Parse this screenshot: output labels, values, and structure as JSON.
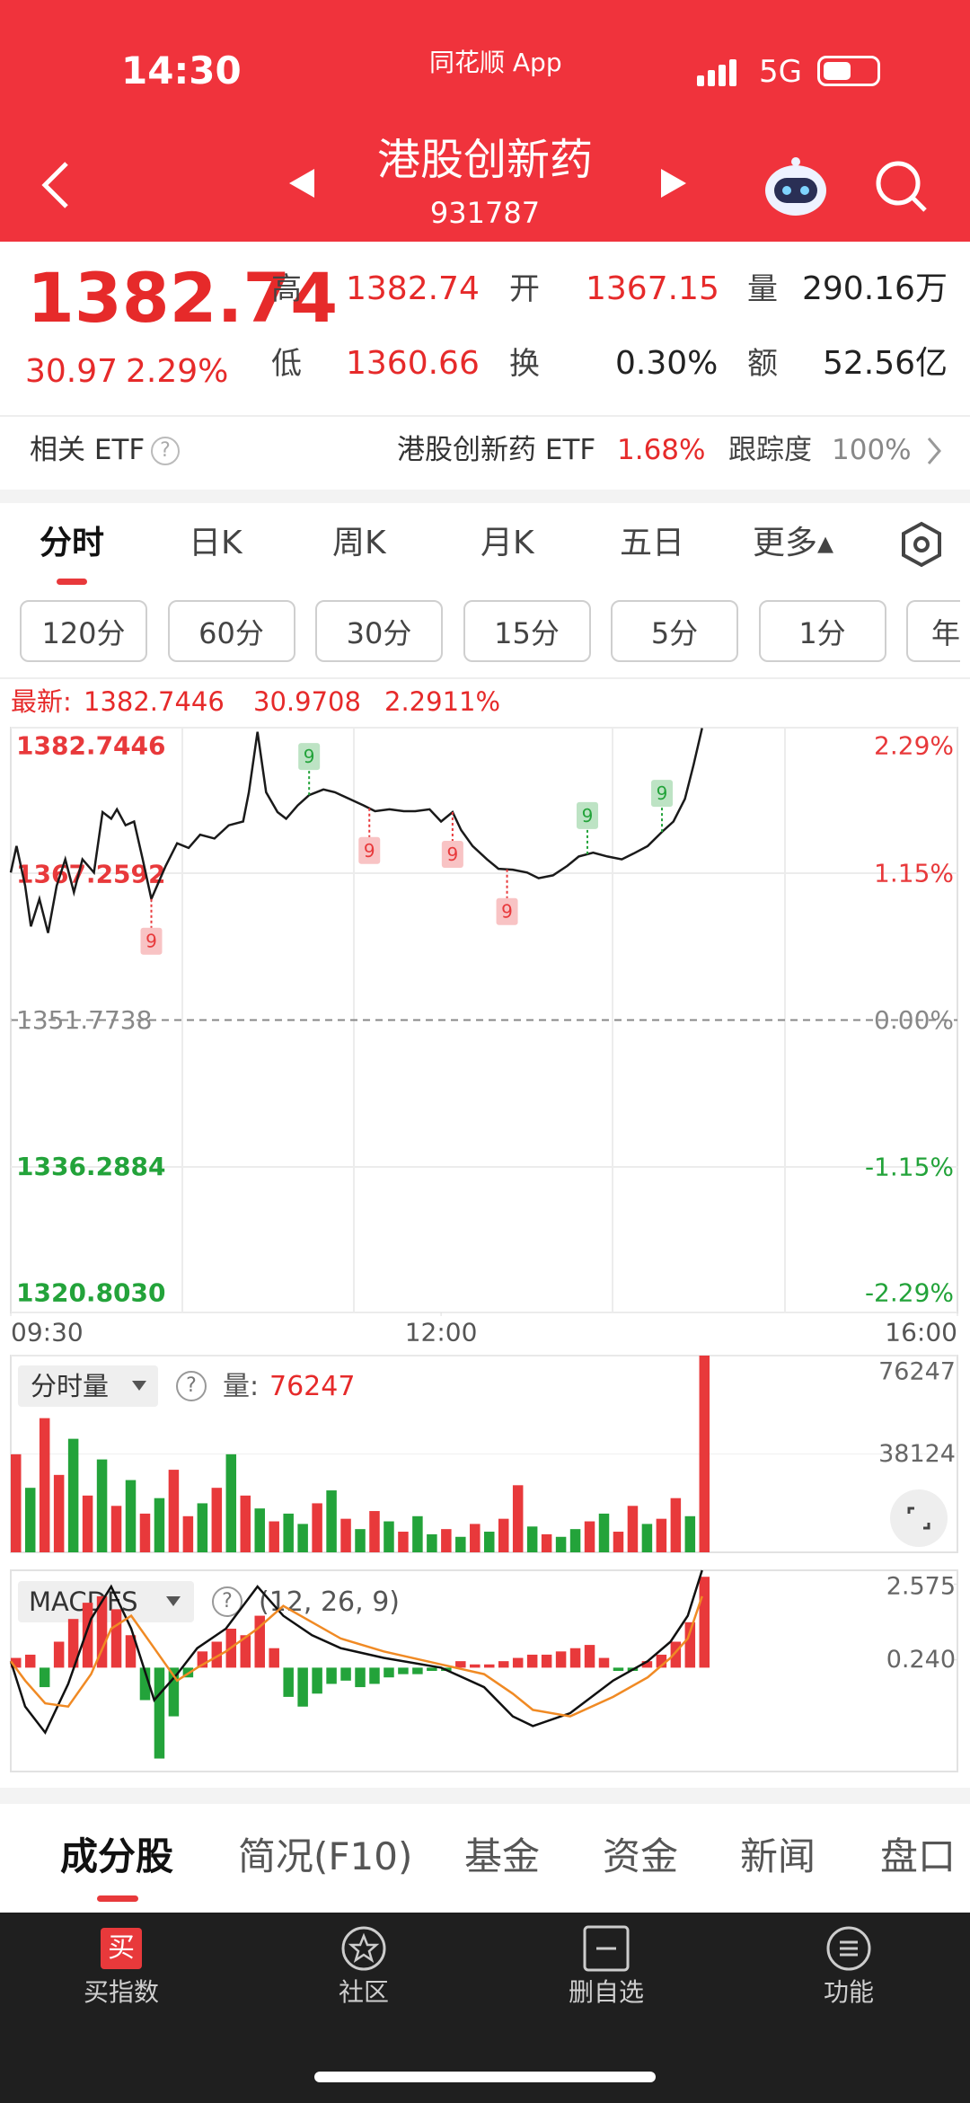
{
  "status": {
    "time": "14:30",
    "app": "同花顺 App",
    "network": "5G"
  },
  "header": {
    "title": "港股创新药",
    "code": "931787"
  },
  "quote": {
    "price": "1382.74",
    "change": "30.97",
    "change_pct": "2.29%",
    "high_label": "高",
    "high": "1382.74",
    "open_label": "开",
    "open": "1367.15",
    "volume_label": "量",
    "volume": "290.16万",
    "low_label": "低",
    "low": "1360.66",
    "turnover_label": "换",
    "turnover": "0.30%",
    "amount_label": "额",
    "amount": "52.56亿"
  },
  "etf": {
    "label": "相关 ETF",
    "help": "?",
    "name": "港股创新药 ETF",
    "pct": "1.68%",
    "track_label": "跟踪度",
    "track": "100%"
  },
  "tabs": [
    "分时",
    "日K",
    "周K",
    "月K",
    "五日",
    "更多▴"
  ],
  "periods": [
    "120分",
    "60分",
    "30分",
    "15分",
    "5分",
    "1分",
    "年"
  ],
  "latest": {
    "label": "最新:",
    "price": "1382.7446",
    "change": "30.9708",
    "pct": "2.2911%"
  },
  "chart_data": [
    {
      "type": "line",
      "x": [
        0,
        2,
        5,
        7,
        10,
        13,
        16,
        19,
        22,
        25,
        29,
        32,
        35,
        37,
        40,
        43,
        46,
        49,
        51,
        54,
        58,
        62,
        66,
        71,
        76,
        81,
        83,
        86,
        89,
        93,
        96,
        100,
        104,
        109,
        113,
        118,
        123,
        127,
        132,
        137,
        141,
        146,
        150,
        154,
        157,
        161,
        166,
        170,
        175,
        180,
        184,
        189,
        194,
        198,
        203,
        208,
        213,
        217,
        222,
        227,
        231,
        235,
        238,
        241
      ],
      "xlim": [
        0,
        330
      ],
      "xticks": [
        {
          "value": 0,
          "label": "09:30"
        },
        {
          "value": 150,
          "label": "12:00"
        },
        {
          "value": 330,
          "label": "16:00"
        }
      ],
      "ylim": [
        1320.803,
        1382.7446
      ],
      "yticks": [
        1382.7446,
        1367.2592,
        1351.7738,
        1336.2884,
        {
          "value": 1320.803,
          "label": "1320.8030"
        }
      ],
      "y2lim": [
        -2.29,
        2.29
      ],
      "y2ticks": [
        {
          "value": 2.29,
          "label": "2.29%"
        },
        {
          "value": 1.15,
          "label": "1.15%"
        },
        {
          "value": 0,
          "label": "0.00%"
        },
        {
          "value": -1.15,
          "label": "-1.15%"
        },
        {
          "value": -2.29,
          "label": "-2.29%"
        }
      ],
      "up_color": "#e8393b",
      "down_color": "#23a33a",
      "flat_color": "#888888",
      "series": [
        {
          "color": "#1a1a1a",
          "values": [
            1367.4,
            1370.2,
            1366.0,
            1361.7,
            1364.6,
            1361.0,
            1366.0,
            1368.8,
            1365.3,
            1368.8,
            1367.4,
            1373.8,
            1373.1,
            1374.1,
            1372.4,
            1372.8,
            1368.8,
            1364.6,
            1366.0,
            1368.1,
            1370.5,
            1370.0,
            1371.4,
            1371.0,
            1372.4,
            1372.8,
            1375.9,
            1382.3,
            1375.9,
            1373.8,
            1373.1,
            1374.5,
            1375.6,
            1376.2,
            1375.9,
            1375.2,
            1374.5,
            1373.9,
            1374.1,
            1373.9,
            1373.9,
            1374.1,
            1372.8,
            1373.8,
            1371.9,
            1370.2,
            1368.8,
            1367.8,
            1367.7,
            1367.4,
            1366.8,
            1367.1,
            1368.1,
            1369.1,
            1369.5,
            1369.1,
            1368.8,
            1369.4,
            1370.2,
            1371.7,
            1372.8,
            1375.2,
            1378.8,
            1382.7
          ]
        }
      ],
      "annotations": [
        {
          "text": "9",
          "x": 49,
          "color": "#e8393b",
          "position": "below"
        },
        {
          "text": "9",
          "x": 104,
          "color": "#23a33a",
          "position": "above"
        },
        {
          "text": "9",
          "x": 125,
          "color": "#e8393b",
          "position": "below"
        },
        {
          "text": "9",
          "x": 154,
          "color": "#e8393b",
          "position": "below"
        },
        {
          "text": "9",
          "x": 173,
          "color": "#e8393b",
          "position": "below"
        },
        {
          "text": "9",
          "x": 201,
          "color": "#23a33a",
          "position": "above"
        },
        {
          "text": "9",
          "x": 227,
          "color": "#23a33a",
          "position": "above"
        }
      ]
    },
    {
      "type": "bar",
      "label": "分时量",
      "help": "?",
      "latest_label": "量:",
      "latest": 76247,
      "x": [
        0,
        5,
        10,
        15,
        20,
        25,
        30,
        35,
        40,
        45,
        50,
        55,
        60,
        65,
        70,
        75,
        80,
        85,
        90,
        95,
        100,
        105,
        110,
        115,
        120,
        125,
        130,
        135,
        140,
        145,
        150,
        155,
        160,
        165,
        170,
        175,
        180,
        185,
        190,
        195,
        200,
        205,
        210,
        215,
        220,
        225,
        230,
        235,
        240
      ],
      "xlim": [
        0,
        330
      ],
      "ylim": [
        0,
        76247
      ],
      "yticks": [
        38124,
        76247
      ],
      "series": [
        {
          "values": [
            38000,
            25000,
            52000,
            30000,
            44000,
            22000,
            36000,
            18000,
            28000,
            15000,
            21000,
            32000,
            14000,
            19000,
            25000,
            38000,
            22000,
            17000,
            12000,
            15000,
            11000,
            19000,
            24000,
            13000,
            9000,
            16000,
            12000,
            8000,
            14000,
            7000,
            9000,
            6000,
            11000,
            8000,
            13000,
            26000,
            10000,
            7000,
            6000,
            9000,
            12000,
            15000,
            8000,
            18000,
            11000,
            13000,
            21000,
            14000,
            76247
          ],
          "colors": [
            "#e8393b",
            "#23a33a",
            "#e8393b",
            "#e8393b",
            "#23a33a",
            "#e8393b",
            "#23a33a",
            "#e8393b",
            "#23a33a",
            "#e8393b",
            "#23a33a",
            "#e8393b",
            "#e8393b",
            "#23a33a",
            "#e8393b",
            "#23a33a",
            "#e8393b",
            "#23a33a",
            "#e8393b",
            "#23a33a",
            "#23a33a",
            "#e8393b",
            "#23a33a",
            "#e8393b",
            "#23a33a",
            "#e8393b",
            "#23a33a",
            "#e8393b",
            "#23a33a",
            "#23a33a",
            "#e8393b",
            "#23a33a",
            "#e8393b",
            "#23a33a",
            "#e8393b",
            "#e8393b",
            "#23a33a",
            "#e8393b",
            "#23a33a",
            "#23a33a",
            "#e8393b",
            "#23a33a",
            "#e8393b",
            "#e8393b",
            "#23a33a",
            "#e8393b",
            "#e8393b",
            "#23a33a",
            "#e8393b"
          ]
        }
      ]
    },
    {
      "type": "macd",
      "label": "MACDFS",
      "help": "?",
      "params": "(12, 26, 9)",
      "x": [
        0,
        5,
        10,
        15,
        20,
        25,
        30,
        35,
        40,
        45,
        50,
        55,
        60,
        65,
        70,
        75,
        80,
        85,
        90,
        95,
        100,
        105,
        110,
        115,
        120,
        125,
        130,
        135,
        140,
        145,
        150,
        155,
        160,
        165,
        170,
        175,
        180,
        185,
        190,
        195,
        200,
        205,
        210,
        215,
        220,
        225,
        230,
        235,
        240
      ],
      "xlim": [
        0,
        330
      ],
      "ylim": [
        -3.2,
        3.0
      ],
      "yticks": [
        2.575,
        {
          "value": 0.24,
          "label": "0.240"
        }
      ],
      "up_color": "#e8393b",
      "down_color": "#23a33a",
      "values": [
        0.3,
        0.4,
        -0.6,
        0.8,
        1.5,
        2.0,
        2.2,
        1.8,
        1.0,
        -1.0,
        -2.8,
        -1.5,
        -0.3,
        0.5,
        0.8,
        1.2,
        1.0,
        1.6,
        0.6,
        -0.9,
        -1.2,
        -0.8,
        -0.5,
        -0.4,
        -0.6,
        -0.5,
        -0.3,
        -0.2,
        -0.2,
        -0.1,
        -0.1,
        0.2,
        0.1,
        0.1,
        0.2,
        0.3,
        0.4,
        0.4,
        0.5,
        0.6,
        0.7,
        0.3,
        -0.1,
        -0.1,
        0.2,
        0.4,
        0.8,
        1.4,
        2.8
      ],
      "series": [
        {
          "color": "#111111",
          "x": [
            0,
            5,
            12,
            20,
            28,
            35,
            42,
            50,
            58,
            65,
            75,
            86,
            95,
            105,
            115,
            130,
            150,
            165,
            175,
            182,
            195,
            210,
            222,
            230,
            236,
            241
          ],
          "values": [
            0.2,
            -1.2,
            -2.0,
            -0.5,
            1.5,
            2.5,
            1.2,
            -1.0,
            -0.2,
            0.6,
            1.2,
            2.5,
            1.6,
            1.0,
            0.6,
            0.3,
            0.0,
            -0.6,
            -1.5,
            -1.8,
            -1.4,
            -0.4,
            0.2,
            0.8,
            1.6,
            3.0
          ]
        },
        {
          "color": "#f08a24",
          "x": [
            0,
            5,
            12,
            20,
            28,
            35,
            42,
            50,
            58,
            65,
            75,
            86,
            95,
            105,
            115,
            130,
            150,
            165,
            175,
            182,
            195,
            210,
            222,
            230,
            236,
            241
          ],
          "values": [
            0.2,
            -0.4,
            -1.1,
            -1.2,
            -0.2,
            1.2,
            1.6,
            0.6,
            -0.4,
            0.0,
            0.5,
            1.2,
            1.9,
            1.4,
            0.9,
            0.5,
            0.1,
            -0.2,
            -0.8,
            -1.3,
            -1.5,
            -0.9,
            -0.3,
            0.3,
            0.9,
            2.2
          ]
        }
      ]
    }
  ],
  "bottom_tabs": [
    "成分股",
    "简况(F10)",
    "基金",
    "资金",
    "新闻",
    "盘口"
  ],
  "nav": {
    "buy_icon": "买",
    "items": [
      "买指数",
      "社区",
      "删自选",
      "功能"
    ]
  }
}
